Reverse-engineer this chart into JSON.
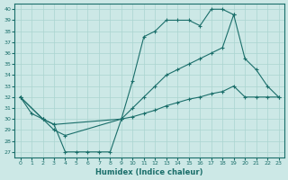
{
  "background_color": "#cce8e6",
  "grid_color": "#aad4d0",
  "line_color": "#1a6e6a",
  "xlabel": "Humidex (Indice chaleur)",
  "xlim": [
    -0.5,
    23.5
  ],
  "ylim": [
    26.5,
    40.5
  ],
  "yticks": [
    27,
    28,
    29,
    30,
    31,
    32,
    33,
    34,
    35,
    36,
    37,
    38,
    39,
    40
  ],
  "xticks": [
    0,
    1,
    2,
    3,
    4,
    5,
    6,
    7,
    8,
    9,
    10,
    11,
    12,
    13,
    14,
    15,
    16,
    17,
    18,
    19,
    20,
    21,
    22,
    23
  ],
  "line1_x": [
    0,
    1,
    2,
    3,
    4,
    5,
    6,
    7,
    8,
    9,
    10,
    11,
    12,
    13,
    14,
    15,
    16,
    17,
    18,
    19
  ],
  "line1_y": [
    32,
    30.5,
    30,
    29.5,
    27,
    27,
    27,
    27,
    27,
    30,
    33.5,
    37.5,
    38,
    39,
    39,
    39,
    38.5,
    40,
    40,
    39.5
  ],
  "line2_x": [
    0,
    2,
    3,
    4,
    9,
    10,
    11,
    12,
    13,
    14,
    15,
    16,
    17,
    18,
    19,
    20,
    21,
    22,
    23
  ],
  "line2_y": [
    32,
    30,
    29,
    28.5,
    30,
    31,
    32,
    33,
    34,
    34.5,
    35,
    35.5,
    36,
    36.5,
    39.5,
    35.5,
    34.5,
    33,
    32
  ],
  "line3_x": [
    0,
    2,
    3,
    9,
    10,
    11,
    12,
    13,
    14,
    15,
    16,
    17,
    18,
    19,
    20,
    21,
    22,
    23
  ],
  "line3_y": [
    32,
    30,
    29.5,
    30,
    30.2,
    30.5,
    30.8,
    31.2,
    31.5,
    31.8,
    32,
    32.3,
    32.5,
    33,
    32,
    32,
    32,
    32
  ]
}
